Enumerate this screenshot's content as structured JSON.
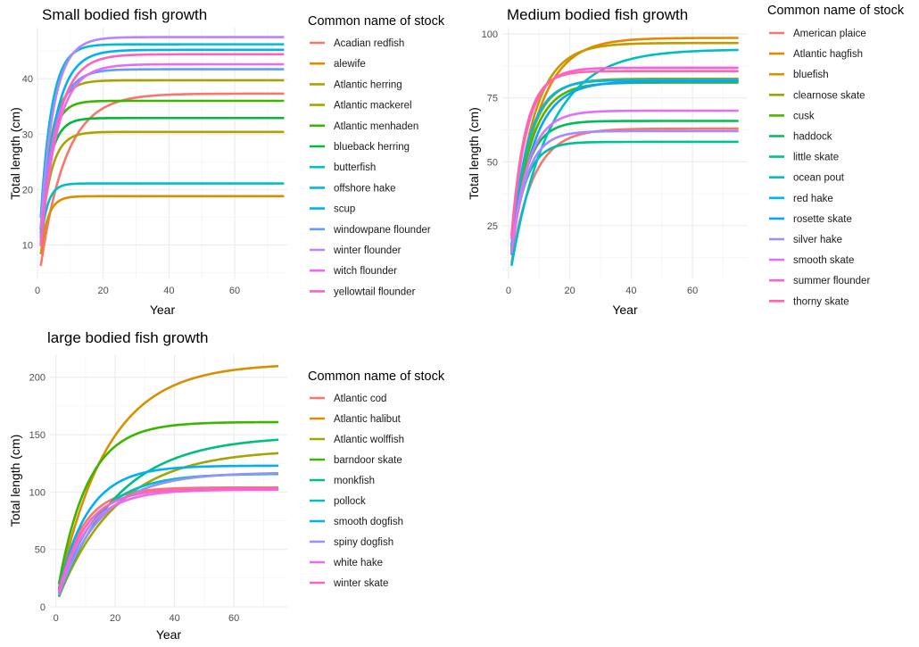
{
  "legend_title": "Common name of stock",
  "chart_data": [
    {
      "type": "line",
      "title": "Small bodied fish growth",
      "xlabel": "Year",
      "ylabel": "Total length (cm)",
      "xlim": [
        0,
        76
      ],
      "ylim": [
        3.8,
        49.2
      ],
      "xticks": [
        0,
        20,
        40,
        60
      ],
      "yticks": [
        10,
        20,
        30,
        40
      ],
      "grid": true,
      "legend_position": "right",
      "x_start": 1,
      "x_end": 75,
      "series": [
        {
          "name": "Acadian redfish",
          "color": "#F8766D",
          "linf": 37.3,
          "k": 0.13,
          "t0": -0.4
        },
        {
          "name": "alewife",
          "color": "#DB8E00",
          "linf": 18.8,
          "k": 0.45,
          "t0": -0.3
        },
        {
          "name": "Atlantic herring",
          "color": "#AEA200",
          "linf": 30.4,
          "k": 0.32,
          "t0": -0.3
        },
        {
          "name": "Atlantic mackerel",
          "color": "#A3A500",
          "linf": 39.7,
          "k": 0.3,
          "t0": -0.3
        },
        {
          "name": "Atlantic menhaden",
          "color": "#39B600",
          "linf": 36.0,
          "k": 0.34,
          "t0": -0.3
        },
        {
          "name": "blueback herring",
          "color": "#00BA38",
          "linf": 32.9,
          "k": 0.35,
          "t0": -0.3
        },
        {
          "name": "butterfish",
          "color": "#00BFC4",
          "linf": 21.1,
          "k": 0.5,
          "t0": -0.3
        },
        {
          "name": "offshore hake",
          "color": "#00BCD8",
          "linf": 46.2,
          "k": 0.3,
          "t0": -0.3
        },
        {
          "name": "scup",
          "color": "#00B0F6",
          "linf": 45.2,
          "k": 0.22,
          "t0": -0.3
        },
        {
          "name": "windowpane flounder",
          "color": "#619CFF",
          "linf": 41.7,
          "k": 0.24,
          "t0": -0.3
        },
        {
          "name": "winter flounder",
          "color": "#B983FF",
          "linf": 47.5,
          "k": 0.25,
          "t0": -0.3
        },
        {
          "name": "witch flounder",
          "color": "#E76BF3",
          "linf": 42.6,
          "k": 0.2,
          "t0": -0.3
        },
        {
          "name": "yellowtail flounder",
          "color": "#FF61C3",
          "linf": 44.4,
          "k": 0.2,
          "t0": -0.3
        }
      ]
    },
    {
      "type": "line",
      "title": "Medium bodied fish growth",
      "xlabel": "Year",
      "ylabel": "Total length (cm)",
      "xlim": [
        -2,
        78
      ],
      "ylim": [
        4,
        102.5
      ],
      "xticks": [
        0,
        20,
        40,
        60
      ],
      "yticks": [
        25,
        50,
        75,
        100
      ],
      "grid": true,
      "legend_position": "right",
      "x_start": 1,
      "x_end": 75,
      "series": [
        {
          "name": "American plaice",
          "color": "#F8766D",
          "linf": 63.0,
          "k": 0.14,
          "t0": -0.3
        },
        {
          "name": "Atlantic hagfish",
          "color": "#E38900",
          "linf": 98.5,
          "k": 0.12,
          "t0": -0.3
        },
        {
          "name": "bluefish",
          "color": "#C49A00",
          "linf": 96.5,
          "k": 0.14,
          "t0": -0.3
        },
        {
          "name": "clearnose skate",
          "color": "#99A800",
          "linf": 82.5,
          "k": 0.17,
          "t0": -0.3
        },
        {
          "name": "cusk",
          "color": "#53B400",
          "linf": 81.0,
          "k": 0.16,
          "t0": -0.3
        },
        {
          "name": "haddock",
          "color": "#00BC56",
          "linf": 66.0,
          "k": 0.2,
          "t0": -0.3
        },
        {
          "name": "little skate",
          "color": "#00C094",
          "linf": 57.8,
          "k": 0.22,
          "t0": -0.3
        },
        {
          "name": "ocean pout",
          "color": "#00BFC4",
          "linf": 94.0,
          "k": 0.08,
          "t0": -0.3
        },
        {
          "name": "red hake",
          "color": "#00B6EB",
          "linf": 82.0,
          "k": 0.18,
          "t0": -0.3
        },
        {
          "name": "rosette skate",
          "color": "#06A4FF",
          "linf": 81.5,
          "k": 0.14,
          "t0": -0.3
        },
        {
          "name": "silver hake",
          "color": "#A58AFF",
          "linf": 62.0,
          "k": 0.2,
          "t0": -0.3
        },
        {
          "name": "smooth skate",
          "color": "#DF70F8",
          "linf": 70.0,
          "k": 0.18,
          "t0": -0.3
        },
        {
          "name": "summer flounder",
          "color": "#FB61D7",
          "linf": 86.8,
          "k": 0.2,
          "t0": -0.3
        },
        {
          "name": "thorny skate",
          "color": "#FF66A8",
          "linf": 85.5,
          "k": 0.22,
          "t0": -0.3
        }
      ]
    },
    {
      "type": "line",
      "title": "large bodied fish growth",
      "xlabel": "Year",
      "ylabel": "Total length (cm)",
      "xlim": [
        -2,
        78
      ],
      "ylim": [
        0,
        220
      ],
      "xticks": [
        0,
        20,
        40,
        60
      ],
      "yticks": [
        0,
        50,
        100,
        150,
        200
      ],
      "grid": true,
      "legend_position": "right",
      "x_start": 1,
      "x_end": 75,
      "series": [
        {
          "name": "Atlantic cod",
          "color": "#F8766D",
          "linf": 104.0,
          "k": 0.12,
          "t0": -0.3
        },
        {
          "name": "Atlantic halibut",
          "color": "#D89000",
          "linf": 212.0,
          "k": 0.06,
          "t0": -0.3
        },
        {
          "name": "Atlantic wolffish",
          "color": "#A3A500",
          "linf": 137.0,
          "k": 0.05,
          "t0": -0.3
        },
        {
          "name": "barndoor skate",
          "color": "#39B600",
          "linf": 161.0,
          "k": 0.1,
          "t0": -0.3
        },
        {
          "name": "monkfish",
          "color": "#00BF7D",
          "linf": 149.0,
          "k": 0.05,
          "t0": -0.3
        },
        {
          "name": "pollock",
          "color": "#00BFC4",
          "linf": 116.0,
          "k": 0.08,
          "t0": -0.3
        },
        {
          "name": "smooth dogfish",
          "color": "#00B0F6",
          "linf": 123.0,
          "k": 0.1,
          "t0": -0.3
        },
        {
          "name": "spiny dogfish",
          "color": "#9590FF",
          "linf": 117.0,
          "k": 0.07,
          "t0": -0.3
        },
        {
          "name": "white hake",
          "color": "#E76BF3",
          "linf": 102.0,
          "k": 0.1,
          "t0": -0.3
        },
        {
          "name": "winter skate",
          "color": "#FF62BC",
          "linf": 103.0,
          "k": 0.11,
          "t0": -0.3
        }
      ]
    }
  ]
}
